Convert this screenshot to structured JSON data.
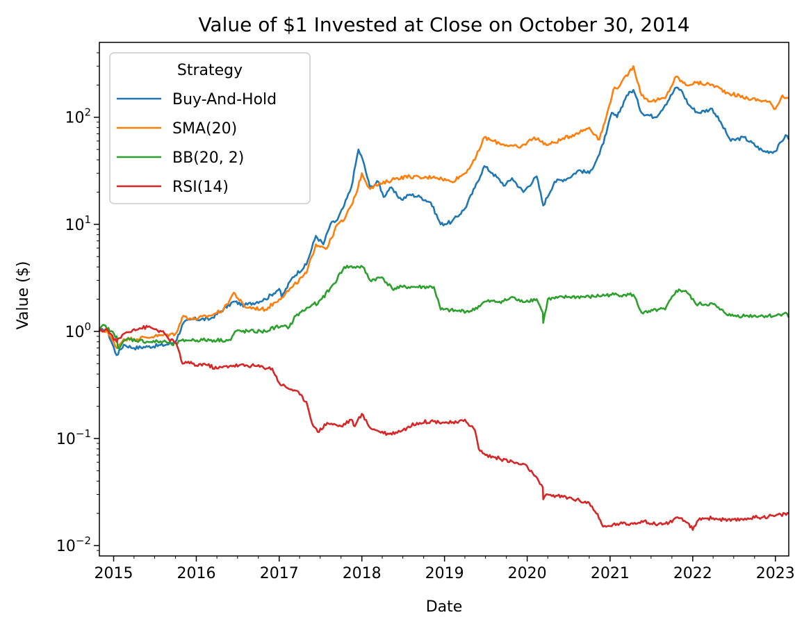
{
  "chart_data": {
    "type": "line",
    "title": "Value of $1 Invested at Close on October 30, 2014",
    "xlabel": "Date",
    "ylabel": "Value ($)",
    "y_scale": "log",
    "ylim": [
      0.008,
      500
    ],
    "xlim": [
      "2014-10-30",
      "2023-03-01"
    ],
    "x_ticks": [
      "2015",
      "2016",
      "2017",
      "2018",
      "2019",
      "2020",
      "2021",
      "2022",
      "2023"
    ],
    "y_ticks": [
      {
        "value": 0.01,
        "base": "10",
        "exp": "−2"
      },
      {
        "value": 0.1,
        "base": "10",
        "exp": "−1"
      },
      {
        "value": 1,
        "base": "10",
        "exp": "0"
      },
      {
        "value": 10,
        "base": "10",
        "exp": "1"
      },
      {
        "value": 100,
        "base": "10",
        "exp": "2"
      }
    ],
    "grid": false,
    "legend": {
      "title": "Strategy",
      "position": "upper left"
    },
    "series": [
      {
        "name": "Buy-And-Hold",
        "color": "#1f77b4",
        "x": [
          "2014-10-30",
          "2014-12-01",
          "2015-01-14",
          "2015-02-15",
          "2015-04-01",
          "2015-06-01",
          "2015-08-20",
          "2015-10-01",
          "2015-11-05",
          "2015-12-15",
          "2016-03-01",
          "2016-06-15",
          "2016-08-01",
          "2016-11-01",
          "2017-01-01",
          "2017-01-12",
          "2017-03-01",
          "2017-05-01",
          "2017-06-12",
          "2017-07-15",
          "2017-08-15",
          "2017-09-15",
          "2017-10-15",
          "2017-11-15",
          "2017-12-17",
          "2018-01-05",
          "2018-02-06",
          "2018-03-15",
          "2018-04-07",
          "2018-05-05",
          "2018-06-25",
          "2018-08-01",
          "2018-09-15",
          "2018-11-01",
          "2018-12-15",
          "2019-02-01",
          "2019-04-01",
          "2019-05-15",
          "2019-06-26",
          "2019-08-01",
          "2019-09-25",
          "2019-10-26",
          "2019-12-15",
          "2020-02-12",
          "2020-03-12",
          "2020-05-01",
          "2020-07-01",
          "2020-08-15",
          "2020-10-01",
          "2020-11-15",
          "2020-12-15",
          "2021-01-08",
          "2021-02-01",
          "2021-03-15",
          "2021-04-14",
          "2021-05-20",
          "2021-07-20",
          "2021-09-01",
          "2021-10-20",
          "2021-11-10",
          "2021-12-15",
          "2022-01-24",
          "2022-03-28",
          "2022-05-10",
          "2022-06-18",
          "2022-08-15",
          "2022-11-09",
          "2023-01-01",
          "2023-02-15",
          "2023-03-01"
        ],
        "values": [
          1.0,
          1.05,
          0.6,
          0.75,
          0.7,
          0.72,
          0.75,
          0.8,
          1.2,
          1.3,
          1.3,
          1.9,
          1.75,
          2.0,
          2.5,
          2.1,
          3.2,
          4.2,
          7.8,
          6.5,
          10.0,
          11.0,
          15.0,
          22.0,
          50.0,
          40.0,
          22.0,
          25.0,
          18.0,
          22.0,
          17.0,
          19.0,
          18.0,
          16.0,
          10.0,
          10.5,
          14.0,
          22.0,
          35.0,
          30.0,
          23.0,
          27.0,
          20.0,
          28.0,
          15.0,
          25.0,
          27.0,
          32.0,
          30.0,
          45.0,
          70.0,
          110.0,
          100.0,
          160.0,
          180.0,
          110.0,
          100.0,
          130.0,
          190.0,
          180.0,
          130.0,
          110.0,
          120.0,
          85.0,
          60.0,
          65.0,
          48.0,
          48.0,
          68.0,
          62.0
        ]
      },
      {
        "name": "SMA(20)",
        "color": "#ff7f0e",
        "x": [
          "2014-10-30",
          "2014-12-01",
          "2015-01-14",
          "2015-02-15",
          "2015-04-01",
          "2015-07-01",
          "2015-10-01",
          "2015-11-05",
          "2015-12-15",
          "2016-03-01",
          "2016-05-01",
          "2016-06-15",
          "2016-08-01",
          "2016-11-01",
          "2017-01-01",
          "2017-03-01",
          "2017-05-01",
          "2017-06-12",
          "2017-08-01",
          "2017-09-15",
          "2017-10-15",
          "2017-11-15",
          "2017-12-15",
          "2018-01-01",
          "2018-02-01",
          "2018-04-01",
          "2018-06-01",
          "2018-08-01",
          "2018-10-01",
          "2018-11-15",
          "2019-02-01",
          "2019-04-01",
          "2019-05-15",
          "2019-06-26",
          "2019-08-01",
          "2019-10-01",
          "2019-12-01",
          "2020-02-01",
          "2020-04-01",
          "2020-06-01",
          "2020-08-01",
          "2020-10-01",
          "2020-11-15",
          "2020-12-15",
          "2021-01-15",
          "2021-02-15",
          "2021-04-14",
          "2021-05-20",
          "2021-07-01",
          "2021-09-01",
          "2021-10-20",
          "2021-12-01",
          "2022-01-15",
          "2022-04-01",
          "2022-06-01",
          "2022-09-01",
          "2022-12-01",
          "2023-01-01",
          "2023-02-01",
          "2023-03-01"
        ],
        "values": [
          1.0,
          1.02,
          0.7,
          0.85,
          0.85,
          0.9,
          0.95,
          1.4,
          1.3,
          1.4,
          1.6,
          2.3,
          1.7,
          1.6,
          2.0,
          2.6,
          3.5,
          6.5,
          6.0,
          10.0,
          11.0,
          15.0,
          22.0,
          30.0,
          22.0,
          24.0,
          27.0,
          28.0,
          27.0,
          28.0,
          25.0,
          30.0,
          40.0,
          65.0,
          60.0,
          55.0,
          52.0,
          65.0,
          55.0,
          62.0,
          70.0,
          80.0,
          62.0,
          100.0,
          180.0,
          200.0,
          300.0,
          160.0,
          140.0,
          150.0,
          240.0,
          200.0,
          210.0,
          200.0,
          170.0,
          150.0,
          140.0,
          120.0,
          160.0,
          150.0
        ]
      },
      {
        "name": "BB(20, 2)",
        "color": "#2ca02c",
        "x": [
          "2014-10-30",
          "2014-11-15",
          "2015-01-14",
          "2015-01-20",
          "2015-03-01",
          "2015-06-01",
          "2015-08-20",
          "2015-09-15",
          "2015-11-15",
          "2016-06-01",
          "2016-06-20",
          "2016-11-01",
          "2016-12-15",
          "2017-01-05",
          "2017-02-15",
          "2017-03-15",
          "2017-06-01",
          "2017-06-20",
          "2017-09-01",
          "2017-10-15",
          "2017-12-17",
          "2018-01-05",
          "2018-02-06",
          "2018-04-01",
          "2018-05-15",
          "2018-07-01",
          "2018-09-01",
          "2018-11-15",
          "2018-12-15",
          "2019-03-01",
          "2019-05-01",
          "2019-07-01",
          "2019-09-01",
          "2019-10-01",
          "2019-10-26",
          "2019-12-01",
          "2020-02-12",
          "2020-03-10",
          "2020-03-12",
          "2020-04-01",
          "2020-07-01",
          "2020-10-01",
          "2021-01-01",
          "2021-03-01",
          "2021-04-14",
          "2021-05-20",
          "2021-06-15",
          "2021-08-01",
          "2021-09-01",
          "2021-10-20",
          "2021-12-01",
          "2022-01-15",
          "2022-04-01",
          "2022-05-01",
          "2022-06-18",
          "2022-09-01",
          "2023-01-01",
          "2023-02-15",
          "2023-03-01"
        ],
        "values": [
          1.0,
          1.15,
          0.9,
          0.7,
          0.85,
          0.8,
          0.8,
          0.75,
          0.83,
          0.83,
          1.0,
          1.0,
          1.1,
          1.1,
          1.1,
          1.4,
          1.8,
          1.8,
          2.8,
          4.0,
          4.0,
          4.0,
          3.0,
          3.2,
          2.5,
          2.6,
          2.6,
          2.6,
          1.6,
          1.55,
          1.55,
          1.9,
          1.9,
          1.95,
          2.1,
          1.9,
          2.0,
          1.5,
          1.2,
          2.0,
          2.1,
          2.1,
          2.2,
          2.2,
          2.2,
          1.5,
          1.5,
          1.6,
          1.6,
          2.4,
          2.4,
          1.8,
          1.8,
          1.6,
          1.4,
          1.4,
          1.4,
          1.5,
          1.35
        ]
      },
      {
        "name": "RSI(14)",
        "color": "#d62728",
        "x": [
          "2014-10-30",
          "2014-12-01",
          "2015-01-14",
          "2015-02-15",
          "2015-04-01",
          "2015-06-01",
          "2015-08-01",
          "2015-09-01",
          "2015-10-01",
          "2015-11-01",
          "2015-11-15",
          "2016-01-01",
          "2016-02-01",
          "2016-04-01",
          "2016-06-01",
          "2016-09-01",
          "2016-12-01",
          "2017-01-01",
          "2017-02-01",
          "2017-03-15",
          "2017-05-01",
          "2017-06-01",
          "2017-06-20",
          "2017-08-01",
          "2017-10-01",
          "2017-11-15",
          "2017-12-01",
          "2018-01-01",
          "2018-02-01",
          "2018-03-01",
          "2018-05-01",
          "2018-07-01",
          "2018-09-01",
          "2018-11-01",
          "2019-02-01",
          "2019-03-01",
          "2019-04-01",
          "2019-05-15",
          "2019-06-01",
          "2019-07-01",
          "2019-09-01",
          "2019-11-01",
          "2020-01-01",
          "2020-02-01",
          "2020-03-10",
          "2020-03-12",
          "2020-04-01",
          "2020-07-01",
          "2020-10-01",
          "2020-11-01",
          "2020-12-01",
          "2020-12-15",
          "2021-02-01",
          "2021-04-01",
          "2021-05-20",
          "2021-07-01",
          "2021-09-01",
          "2021-11-01",
          "2021-12-15",
          "2022-01-01",
          "2022-02-01",
          "2022-04-01",
          "2022-06-18",
          "2022-09-01",
          "2023-01-01",
          "2023-03-01"
        ],
        "values": [
          1.0,
          1.05,
          0.8,
          0.95,
          1.05,
          1.1,
          1.0,
          0.85,
          0.8,
          0.5,
          0.52,
          0.48,
          0.5,
          0.45,
          0.48,
          0.48,
          0.45,
          0.33,
          0.3,
          0.28,
          0.22,
          0.13,
          0.115,
          0.14,
          0.13,
          0.15,
          0.13,
          0.17,
          0.13,
          0.12,
          0.11,
          0.12,
          0.14,
          0.145,
          0.14,
          0.14,
          0.15,
          0.12,
          0.08,
          0.07,
          0.065,
          0.06,
          0.055,
          0.045,
          0.035,
          0.027,
          0.03,
          0.028,
          0.025,
          0.02,
          0.015,
          0.015,
          0.016,
          0.016,
          0.017,
          0.016,
          0.016,
          0.018,
          0.016,
          0.014,
          0.018,
          0.018,
          0.017,
          0.018,
          0.019,
          0.02
        ]
      }
    ]
  }
}
